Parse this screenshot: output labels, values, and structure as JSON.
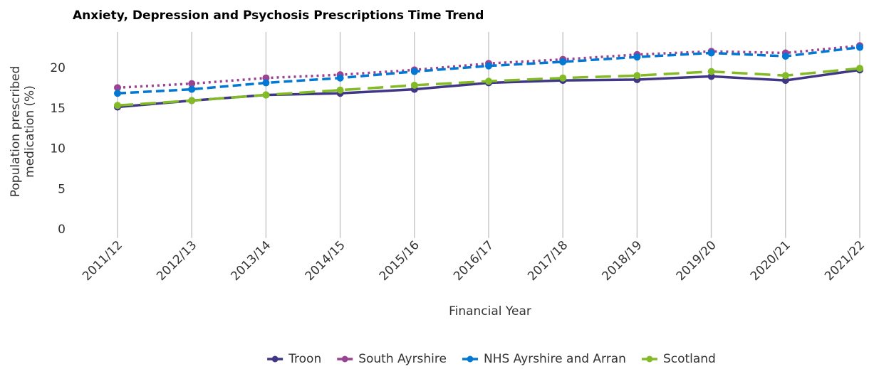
{
  "chart_data": {
    "type": "line",
    "title": "Anxiety, Depression and Psychosis Prescriptions Time Trend",
    "xlabel": "Financial Year",
    "ylabel": [
      "Population prescribed",
      "medication (%)"
    ],
    "categories": [
      "2011/12",
      "2012/13",
      "2013/14",
      "2014/15",
      "2015/16",
      "2016/17",
      "2017/18",
      "2018/19",
      "2019/20",
      "2020/21",
      "2021/22"
    ],
    "series": [
      {
        "name": "Troon",
        "color": "#3f3685",
        "line_style": "solid",
        "values": [
          15.2,
          16.0,
          16.7,
          16.9,
          17.4,
          18.2,
          18.5,
          18.6,
          19.0,
          18.5,
          19.8
        ]
      },
      {
        "name": "South Ayrshire",
        "color": "#9b4393",
        "line_style": "dotted",
        "values": [
          17.6,
          18.1,
          18.8,
          19.2,
          19.8,
          20.6,
          21.1,
          21.7,
          22.1,
          21.9,
          22.8
        ]
      },
      {
        "name": "NHS Ayrshire and Arran",
        "color": "#0078d4",
        "line_style": "dashed",
        "values": [
          16.9,
          17.4,
          18.2,
          18.8,
          19.6,
          20.3,
          20.8,
          21.4,
          21.9,
          21.5,
          22.6
        ]
      },
      {
        "name": "Scotland",
        "color": "#83bb26",
        "line_style": "longdash",
        "values": [
          15.4,
          16.0,
          16.7,
          17.3,
          17.9,
          18.4,
          18.8,
          19.1,
          19.6,
          19.1,
          20.0
        ]
      }
    ],
    "ylim": [
      -0.5,
      24.5
    ],
    "yticks": [
      0,
      5,
      10,
      15,
      20
    ],
    "grid": true,
    "legend": "bottom"
  }
}
